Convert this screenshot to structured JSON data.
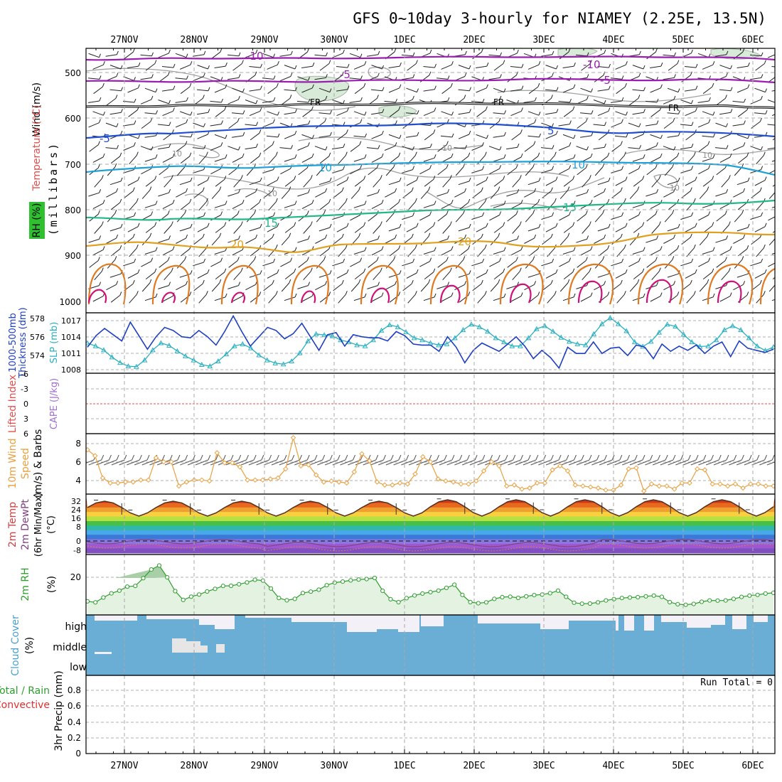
{
  "title": "GFS 0~10day 3-hourly for NIAMEY (2.25E, 13.5N)",
  "dates": [
    "27NOV",
    "28NOV",
    "29NOV",
    "30NOV",
    "1DEC",
    "2DEC",
    "3DEC",
    "4DEC",
    "5DEC",
    "6DEC"
  ],
  "colors": {
    "purple": "#9a1fb0",
    "blue": "#1f4fd0",
    "cyan": "#1ea0d8",
    "green": "#20b888",
    "orange": "#e0a020",
    "darkorange": "#e07a20",
    "magenta": "#d0107a",
    "rh": "#2e9e2e",
    "cloud": "#6aaed6",
    "sky": "#f4f0f8",
    "grid": "#a8a8a8"
  },
  "panels": {
    "upper": {
      "ylabel_wind": "Wind (m/s)",
      "ylabel_temp": "Temperature (°C)",
      "ylabel_rh": "RH (%)",
      "ylabel_unit": "(millibars)",
      "yticks": [
        "500",
        "600",
        "700",
        "800",
        "900",
        "1000"
      ],
      "contour_labels": {
        "m10a": "-10",
        "m10b": "-10",
        "m5a": "-5",
        "m5b": "-5",
        "fr1": "FR",
        "fr2": "FR",
        "fr3": "FR",
        "t5a": "-5",
        "t5b": "5",
        "t10a": "10",
        "t10b": "10",
        "t15a": "15",
        "t15b": "15",
        "t20a": "20",
        "t20b": "20",
        "rh10a": "10",
        "rh10b": "10",
        "rh10c": "10",
        "rh10d": "10",
        "rh10e": "10"
      }
    },
    "thickness": {
      "ylabel_left": "1000-500mb",
      "ylabel_left2": "Thickness (dm)",
      "ylabel_right": "SLP (mb)",
      "yticks_left": [
        "578",
        "576",
        "574"
      ],
      "yticks_right": [
        "1017",
        "1014",
        "1011",
        "1008"
      ]
    },
    "cape": {
      "ylabel_li": "Lifted Index",
      "ylabel_cape": "CAPE (J/kg)",
      "yticks": [
        "-6",
        "-3",
        "0",
        "3",
        "6"
      ]
    },
    "wind10": {
      "ylabel1": "10m Wind",
      "ylabel2": "Speed",
      "ylabel3": "(m/s) & Barbs",
      "yticks": [
        "8",
        "6",
        "4"
      ]
    },
    "temp2m": {
      "ylabel1": "2m Temp",
      "ylabel2": "2m DewPt",
      "ylabel3": "(6hr Min/Max)",
      "ylabel4": "(°C)",
      "yticks": [
        "32",
        "24",
        "16",
        "8",
        "0",
        "-8"
      ]
    },
    "rh2m": {
      "ylabel1": "2m RH",
      "ylabel2": "(%)",
      "yticks": [
        "20"
      ]
    },
    "cloud": {
      "ylabel1": "Cloud Cover",
      "ylabel2": "(%)",
      "levels": [
        "high",
        "middle",
        "low"
      ]
    },
    "precip": {
      "ylabel1": "Total / Rain",
      "ylabel2": "Convective",
      "ylabel3": "3hr Precip (mm)",
      "yticks": [
        "0.8",
        "0.6",
        "0.4",
        "0.2",
        "0"
      ],
      "run_total": "Run Total = 0"
    }
  },
  "chart_data": [
    {
      "type": "line",
      "name": "1000-500mb thickness (dm) and SLP (mb)",
      "x_unit": "3-hourly steps from 26NOV 18Z",
      "series": [
        {
          "name": "SLP (mb)",
          "axis": "right",
          "ylim": [
            1007,
            1019
          ],
          "values": [
            1013,
            1012.4,
            1011.6,
            1010.2,
            1009.1,
            1008.4,
            1008.3,
            1009.6,
            1011.6,
            1013,
            1012.5,
            1011.4,
            1010.4,
            1009.6,
            1008.7,
            1008.4,
            1009.4,
            1010.8,
            1012.4,
            1012.8,
            1012,
            1010.6,
            1009.6,
            1009,
            1008.8,
            1009.4,
            1011,
            1013.4,
            1014.8,
            1014.6,
            1014.4,
            1013.6,
            1013.2,
            1012.6,
            1012.4,
            1013.6,
            1015.5,
            1016.6,
            1016.2,
            1015.2,
            1014,
            1013.6,
            1013,
            1012.6,
            1012.8,
            1014,
            1015.6,
            1016.7,
            1016.2,
            1015.3,
            1014,
            1013.2,
            1012.4,
            1012.4,
            1014,
            1015.8,
            1016.4,
            1015.3,
            1014.1,
            1013.3,
            1012.8,
            1012.6,
            1014.8,
            1016.8,
            1018,
            1016.8,
            1015.4,
            1013.2,
            1012.3,
            1013.3,
            1015.1,
            1016.7,
            1016.3,
            1014.7,
            1013.2,
            1012.3,
            1012.4,
            1013.6,
            1015.6,
            1016.4,
            1015.6,
            1014,
            1012.4,
            1011.5,
            1012.2
          ]
        },
        {
          "name": "1000-500mb Thickness (dm)",
          "axis": "left",
          "ylim": [
            572.7,
            578.5
          ],
          "values": [
            575.2,
            576.3,
            577,
            576.4,
            575.8,
            577.6,
            576.3,
            575,
            576.2,
            577.1,
            576.8,
            576.2,
            576.1,
            576.8,
            576.2,
            575.4,
            576.7,
            578.2,
            576.7,
            575.3,
            576.2,
            577.1,
            576.8,
            576,
            576.5,
            577.5,
            576.2,
            574.9,
            576.4,
            576.6,
            575.3,
            576.4,
            576.2,
            576.1,
            576.1,
            575.8,
            576.7,
            576.3,
            575.5,
            575.4,
            575.4,
            574.8,
            576.2,
            575.2,
            573.7,
            574.9,
            575.6,
            575.2,
            574.8,
            575.5,
            576.2,
            575.3,
            574.1,
            574.9,
            574.2,
            573.2,
            575.2,
            574.6,
            574.6,
            575.7,
            574.6,
            575.1,
            575.2,
            574.4,
            575.4,
            575.2,
            574.1,
            575.5,
            574.8,
            575.3,
            574.9,
            575.4,
            574.6,
            575.3,
            575.7,
            574.3,
            575.8,
            575.1,
            574.9,
            574.7,
            575
          ]
        }
      ]
    },
    {
      "type": "line",
      "name": "10m Wind Speed (m/s)",
      "ylim": [
        3,
        9
      ],
      "values": [
        7.4,
        6.8,
        4.6,
        4.1,
        4.1,
        4.2,
        4.2,
        4.4,
        4.4,
        6.6,
        6.2,
        6.2,
        3.8,
        4.2,
        4.4,
        4.4,
        4.3,
        7.1,
        6.1,
        6.1,
        5.7,
        4.4,
        4.4,
        4.4,
        4.5,
        4.6,
        5.5,
        8.6,
        5.8,
        5.9,
        4.9,
        4.2,
        4.3,
        4.2,
        4.1,
        5.2,
        7.0,
        6.3,
        4.2,
        3.9,
        3.9,
        4.1,
        4.0,
        5.0,
        6.7,
        6.2,
        4.5,
        4.3,
        4.2,
        4.0,
        4.0,
        4.3,
        5.3,
        6.2,
        5.8,
        3.8,
        3.9,
        3.5,
        3.6,
        4.1,
        4.1,
        5.4,
        5.8,
        5.3,
        3.9,
        3.8,
        3.7,
        3.6,
        3.4,
        3.4,
        3.9,
        5.5,
        5.6,
        3.3,
        4.0,
        3.8,
        3.8,
        3.5,
        4.1,
        4.1,
        5.5,
        5.4,
        4.0,
        4.0,
        3.8,
        4.0,
        3.6,
        4.0,
        4.0,
        3.8,
        3.8
      ]
    },
    {
      "type": "area",
      "name": "2m RH (%)",
      "ylim": [
        0,
        35
      ],
      "values": [
        7.9,
        7.3,
        10.1,
        12.5,
        14.1,
        16.4,
        16.8,
        21.3,
        26.3,
        28.6,
        21.8,
        13.8,
        8.7,
        10.6,
        11.8,
        13.6,
        15.1,
        16.8,
        16.9,
        17.8,
        18.8,
        20.4,
        19.9,
        15.3,
        9.8,
        8.5,
        9.3,
        12.7,
        13.5,
        14.6,
        17.2,
        18.7,
        19.3,
        20,
        20.5,
        20.8,
        21.4,
        14,
        9.1,
        7.4,
        9.7,
        11.3,
        12.4,
        13.2,
        14.1,
        15.7,
        17.5,
        11.6,
        7.4,
        6.8,
        7.3,
        9.3,
        10.3,
        10.6,
        9.9,
        10.8,
        11.5,
        11.8,
        12.6,
        14.1,
        10.5,
        7.1,
        6.5,
        6.6,
        7.3,
        8.4,
        9.2,
        9.8,
        10.1,
        10.3,
        10.8,
        11.2,
        10.5,
        7.4,
        6.2,
        5.9,
        6.4,
        7.6,
        8.4,
        8.3,
        8.4,
        9.3,
        10.4,
        11.2,
        11.6,
        12.4,
        12.8
      ]
    },
    {
      "type": "bar",
      "name": "3hr Precip (mm)",
      "ylim": [
        0,
        1
      ],
      "values": [],
      "run_total": 0
    }
  ]
}
